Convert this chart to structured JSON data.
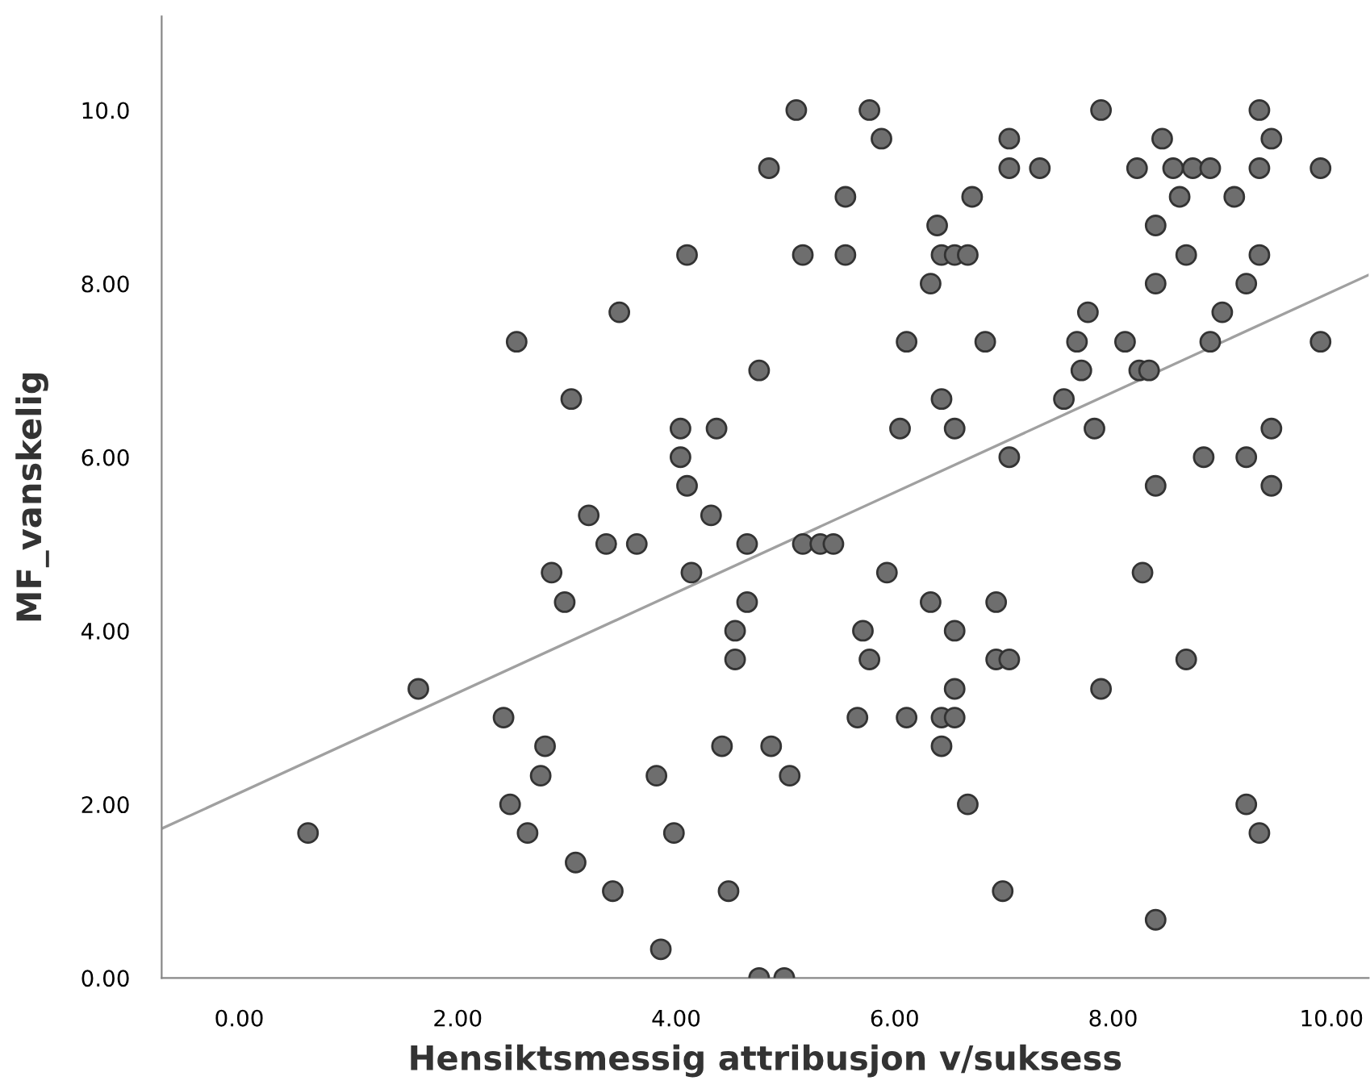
{
  "chart_data": {
    "type": "scatter",
    "xlabel": "Hensiktsmessig attribusjon v/suksess",
    "ylabel": "MF_vanskelig",
    "xlim": [
      -0.71,
      10.34
    ],
    "ylim": [
      0,
      11.08
    ],
    "xticks": [
      {
        "value": 0,
        "label": "0.00"
      },
      {
        "value": 2,
        "label": "2.00"
      },
      {
        "value": 4,
        "label": "4.00"
      },
      {
        "value": 6,
        "label": "6.00"
      },
      {
        "value": 8,
        "label": "8.00"
      },
      {
        "value": 10,
        "label": "10.00"
      }
    ],
    "yticks": [
      {
        "value": 0,
        "label": "0.00"
      },
      {
        "value": 2,
        "label": "2.00"
      },
      {
        "value": 4,
        "label": "4.00"
      },
      {
        "value": 6,
        "label": "6.00"
      },
      {
        "value": 8,
        "label": "8.00"
      },
      {
        "value": 10,
        "label": "10.0"
      }
    ],
    "grid": false,
    "series": [
      {
        "marker": "circle",
        "color": "#6e6e6e",
        "x": [
          4.85,
          4.1,
          3.48,
          2.54,
          4.76,
          3.04,
          4.04,
          4.37,
          4.04,
          4.1,
          3.2,
          4.32,
          3.36,
          3.64,
          4.65,
          2.86,
          4.14,
          4.65,
          2.98,
          4.54,
          4.54,
          1.64,
          2.42,
          2.8,
          4.42,
          4.87,
          2.76,
          3.82,
          2.48,
          2.64,
          3.98,
          0.63,
          3.08,
          3.42,
          4.48,
          3.86,
          4.76,
          5.1,
          5.77,
          7.89,
          9.34,
          5.88,
          7.05,
          8.45,
          9.45,
          7.05,
          7.33,
          8.22,
          8.55,
          8.73,
          8.89,
          9.34,
          9.9,
          5.55,
          6.71,
          8.61,
          9.11,
          6.39,
          8.39,
          5.16,
          5.55,
          6.43,
          6.55,
          6.67,
          8.67,
          9.34,
          6.33,
          8.39,
          9.22,
          7.77,
          9.0,
          6.11,
          6.83,
          7.67,
          8.11,
          8.89,
          9.9,
          7.71,
          8.24,
          8.33,
          6.43,
          7.55,
          6.05,
          6.55,
          7.83,
          9.45,
          7.05,
          8.83,
          9.22,
          8.39,
          9.45,
          5.16,
          5.32,
          5.44,
          5.93,
          8.27,
          6.33,
          6.93,
          5.71,
          6.55,
          5.77,
          6.93,
          7.05,
          8.67,
          6.55,
          7.89,
          5.66,
          6.11,
          6.43,
          6.55,
          6.43,
          5.04,
          6.67,
          9.22,
          9.34,
          6.99,
          8.39,
          4.99
        ],
        "values": [
          9.33,
          8.33,
          7.67,
          7.33,
          7.0,
          6.67,
          6.33,
          6.33,
          6.0,
          5.67,
          5.33,
          5.33,
          5.0,
          5.0,
          5.0,
          4.67,
          4.67,
          4.33,
          4.33,
          4.0,
          3.67,
          3.33,
          3.0,
          2.67,
          2.67,
          2.67,
          2.33,
          2.33,
          2.0,
          1.67,
          1.67,
          1.67,
          1.33,
          1.0,
          1.0,
          0.33,
          0,
          10,
          10,
          10,
          10,
          9.67,
          9.67,
          9.67,
          9.67,
          9.33,
          9.33,
          9.33,
          9.33,
          9.33,
          9.33,
          9.33,
          9.33,
          9,
          9,
          9,
          9,
          8.67,
          8.67,
          8.33,
          8.33,
          8.33,
          8.33,
          8.33,
          8.33,
          8.33,
          8,
          8,
          8,
          7.67,
          7.67,
          7.33,
          7.33,
          7.33,
          7.33,
          7.33,
          7.33,
          7,
          7,
          7,
          6.67,
          6.67,
          6.33,
          6.33,
          6.33,
          6.33,
          6,
          6,
          6,
          5.67,
          5.67,
          5,
          5,
          5,
          4.67,
          4.67,
          4.33,
          4.33,
          4,
          4,
          3.67,
          3.67,
          3.67,
          3.67,
          3.33,
          3.33,
          3,
          3,
          3,
          3,
          2.67,
          2.33,
          2,
          2,
          1.67,
          1,
          0.67,
          0
        ]
      },
      {
        "type": "line",
        "color": "#a0a0a0",
        "x": [
          -0.71,
          10.34
        ],
        "values": [
          1.72,
          8.1
        ]
      }
    ]
  }
}
